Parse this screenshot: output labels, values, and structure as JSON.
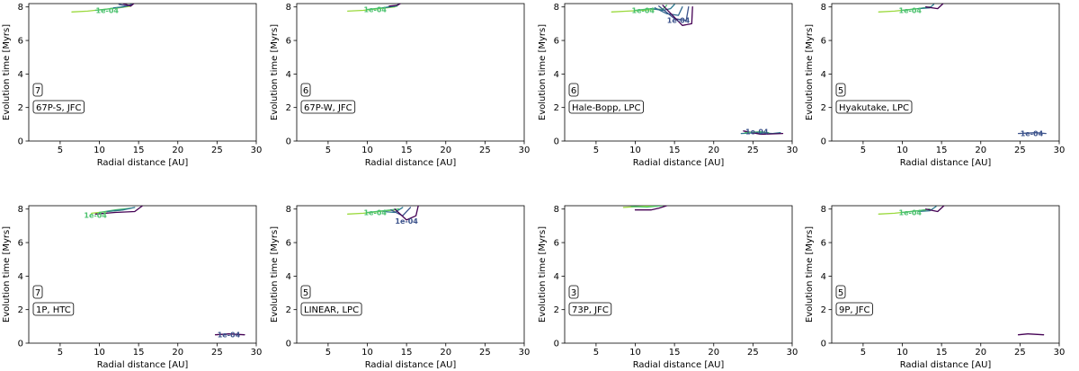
{
  "chart_data": [
    {
      "type": "contour",
      "xlabel": "Radial distance [AU]",
      "ylabel": "Evolution time [Myrs]",
      "xlim": [
        1,
        30
      ],
      "ylim": [
        0,
        8.2
      ],
      "xticks": [
        5,
        10,
        15,
        20,
        25,
        30
      ],
      "yticks": [
        0,
        2,
        4,
        6,
        8
      ],
      "number": "7",
      "label": "67P-S, JFC",
      "contour_labels": [
        "1e-04"
      ],
      "contours": [
        {
          "color": "#9ad93c",
          "points": [
            [
              6.5,
              7.7
            ],
            [
              8.5,
              7.75
            ],
            [
              10.5,
              7.85
            ],
            [
              12.5,
              7.95
            ],
            [
              14,
              8.05
            ]
          ]
        },
        {
          "color": "#4ac16d",
          "points": [
            [
              9.5,
              7.8
            ],
            [
              11.5,
              7.9
            ],
            [
              13,
              8.0
            ],
            [
              14,
              8.1
            ]
          ]
        },
        {
          "color": "#2a788e",
          "points": [
            [
              11.8,
              7.95
            ],
            [
              13,
              8.0
            ],
            [
              14,
              8.12
            ]
          ]
        },
        {
          "color": "#3b528b",
          "points": [
            [
              12.5,
              8.15
            ],
            [
              13.5,
              8.05
            ],
            [
              14.1,
              8.15
            ]
          ]
        },
        {
          "color": "#440154",
          "points": [
            [
              13,
              8.2
            ],
            [
              14,
              8.05
            ],
            [
              14.4,
              8.2
            ]
          ]
        }
      ],
      "contour_label_positions": [
        [
          11,
          7.8
        ]
      ]
    },
    {
      "type": "contour",
      "xlabel": "Radial distance [AU]",
      "ylabel": "Evolution time [Myrs]",
      "xlim": [
        1,
        30
      ],
      "ylim": [
        0,
        8.2
      ],
      "xticks": [
        5,
        10,
        15,
        20,
        25,
        30
      ],
      "yticks": [
        0,
        2,
        4,
        6,
        8
      ],
      "number": "6",
      "label": "67P-W, JFC",
      "contour_labels": [
        "1e-04"
      ],
      "contours": [
        {
          "color": "#9ad93c",
          "points": [
            [
              7.5,
              7.75
            ],
            [
              9.5,
              7.8
            ],
            [
              11.5,
              7.9
            ],
            [
              13.5,
              8.0
            ]
          ]
        },
        {
          "color": "#4ac16d",
          "points": [
            [
              10,
              7.85
            ],
            [
              12,
              7.95
            ],
            [
              13.8,
              8.05
            ]
          ]
        },
        {
          "color": "#2a788e",
          "points": [
            [
              12,
              7.95
            ],
            [
              13.5,
              8.05
            ],
            [
              14,
              8.15
            ]
          ]
        },
        {
          "color": "#440154",
          "points": [
            [
              12.8,
              8.05
            ],
            [
              13.8,
              8.1
            ],
            [
              14.2,
              8.2
            ]
          ]
        }
      ],
      "contour_label_positions": [
        [
          11,
          7.85
        ]
      ]
    },
    {
      "type": "contour",
      "xlabel": "Radial distance [AU]",
      "ylabel": "Evolution time [Myrs]",
      "xlim": [
        1,
        30
      ],
      "ylim": [
        0,
        8.2
      ],
      "xticks": [
        5,
        10,
        15,
        20,
        25,
        30
      ],
      "yticks": [
        0,
        2,
        4,
        6,
        8
      ],
      "number": "6",
      "label": "Hale-Bopp, LPC",
      "contour_labels": [
        "1e-04",
        "1e-04",
        "1e-04"
      ],
      "contours": [
        {
          "color": "#9ad93c",
          "points": [
            [
              7,
              7.7
            ],
            [
              9,
              7.75
            ],
            [
              11,
              7.8
            ],
            [
              12.5,
              7.85
            ]
          ]
        },
        {
          "color": "#4ac16d",
          "points": [
            [
              10,
              7.8
            ],
            [
              12,
              7.9
            ],
            [
              13.5,
              7.85
            ],
            [
              14,
              8.1
            ]
          ]
        },
        {
          "color": "#2a788e",
          "points": [
            [
              12,
              7.9
            ],
            [
              13.5,
              7.8
            ],
            [
              14.5,
              7.9
            ],
            [
              15,
              8.15
            ]
          ]
        },
        {
          "color": "#31688e",
          "points": [
            [
              12.5,
              7.95
            ],
            [
              14,
              7.6
            ],
            [
              15.5,
              7.5
            ],
            [
              16,
              8.0
            ]
          ]
        },
        {
          "color": "#3b528b",
          "points": [
            [
              13,
              8.05
            ],
            [
              15,
              7.3
            ],
            [
              16.5,
              7.2
            ],
            [
              16.8,
              8.0
            ]
          ]
        },
        {
          "color": "#440154",
          "points": [
            [
              13.5,
              8.1
            ],
            [
              16,
              6.9
            ],
            [
              17.2,
              7.0
            ],
            [
              17.3,
              8.0
            ]
          ]
        },
        {
          "color": "#2a788e",
          "points": [
            [
              23.5,
              0.45
            ],
            [
              25.5,
              0.5
            ],
            [
              27.5,
              0.45
            ],
            [
              28.5,
              0.5
            ]
          ]
        },
        {
          "color": "#440154",
          "points": [
            [
              23.8,
              0.6
            ],
            [
              26,
              0.4
            ],
            [
              28.8,
              0.45
            ]
          ]
        },
        {
          "color": "#4ac16d",
          "points": [
            [
              24,
              0.5
            ],
            [
              26,
              0.55
            ],
            [
              27,
              0.5
            ]
          ]
        }
      ],
      "contour_label_positions": [
        [
          11,
          7.8
        ],
        [
          15.5,
          7.2
        ],
        [
          25.5,
          0.55
        ]
      ]
    },
    {
      "type": "contour",
      "xlabel": "Radial distance [AU]",
      "ylabel": "Evolution time [Myrs]",
      "xlim": [
        1,
        30
      ],
      "ylim": [
        0,
        8.2
      ],
      "xticks": [
        5,
        10,
        15,
        20,
        25,
        30
      ],
      "yticks": [
        0,
        2,
        4,
        6,
        8
      ],
      "number": "5",
      "label": "Hyakutake, LPC",
      "contour_labels": [
        "1e-04",
        "1e-04"
      ],
      "contours": [
        {
          "color": "#9ad93c",
          "points": [
            [
              7,
              7.7
            ],
            [
              9,
              7.75
            ],
            [
              11,
              7.85
            ],
            [
              13,
              7.95
            ]
          ]
        },
        {
          "color": "#4ac16d",
          "points": [
            [
              10,
              7.8
            ],
            [
              12,
              7.9
            ],
            [
              13.5,
              8.0
            ]
          ]
        },
        {
          "color": "#2a788e",
          "points": [
            [
              12,
              7.9
            ],
            [
              13.5,
              7.95
            ],
            [
              14,
              8.15
            ]
          ]
        },
        {
          "color": "#440154",
          "points": [
            [
              13,
              8.0
            ],
            [
              14.5,
              7.9
            ],
            [
              15.2,
              8.2
            ]
          ]
        },
        {
          "color": "#3b528b",
          "points": [
            [
              24.8,
              0.45
            ],
            [
              27,
              0.5
            ],
            [
              28.3,
              0.45
            ]
          ]
        }
      ],
      "contour_label_positions": [
        [
          11,
          7.8
        ],
        [
          26.5,
          0.45
        ]
      ]
    },
    {
      "type": "contour",
      "xlabel": "Radial distance [AU]",
      "ylabel": "Evolution time [Myrs]",
      "xlim": [
        1,
        30
      ],
      "ylim": [
        0,
        8.2
      ],
      "xticks": [
        5,
        10,
        15,
        20,
        25,
        30
      ],
      "yticks": [
        0,
        2,
        4,
        6,
        8
      ],
      "number": "7",
      "label": "1P, HTC",
      "contour_labels": [
        "1e-04",
        "1e-04"
      ],
      "contours": [
        {
          "color": "#9ad93c",
          "points": [
            [
              9,
              7.75
            ],
            [
              11,
              7.85
            ],
            [
              13,
              7.95
            ]
          ]
        },
        {
          "color": "#4ac16d",
          "points": [
            [
              10,
              7.8
            ],
            [
              12,
              7.95
            ],
            [
              14,
              8.05
            ]
          ]
        },
        {
          "color": "#2a788e",
          "points": [
            [
              11,
              7.85
            ],
            [
              13,
              7.95
            ],
            [
              14.5,
              8.1
            ]
          ]
        },
        {
          "color": "#440154",
          "points": [
            [
              9.5,
              7.7
            ],
            [
              12,
              7.8
            ],
            [
              14.5,
              7.85
            ],
            [
              15.5,
              8.2
            ]
          ]
        },
        {
          "color": "#440154",
          "points": [
            [
              24.8,
              0.5
            ],
            [
              26.5,
              0.55
            ],
            [
              28.5,
              0.5
            ]
          ]
        }
      ],
      "contour_label_positions": [
        [
          9.5,
          7.65
        ],
        [
          26.5,
          0.5
        ]
      ]
    },
    {
      "type": "contour",
      "xlabel": "Radial distance [AU]",
      "ylabel": "Evolution time [Myrs]",
      "xlim": [
        1,
        30
      ],
      "ylim": [
        0,
        8.2
      ],
      "xticks": [
        5,
        10,
        15,
        20,
        25,
        30
      ],
      "yticks": [
        0,
        2,
        4,
        6,
        8
      ],
      "number": "5",
      "label": "LINEAR, LPC",
      "contour_labels": [
        "1e-04",
        "1e-04"
      ],
      "contours": [
        {
          "color": "#9ad93c",
          "points": [
            [
              7.5,
              7.7
            ],
            [
              9.5,
              7.75
            ],
            [
              11.5,
              7.85
            ],
            [
              13.5,
              7.95
            ]
          ]
        },
        {
          "color": "#4ac16d",
          "points": [
            [
              10,
              7.8
            ],
            [
              12,
              7.9
            ],
            [
              14,
              8.0
            ]
          ]
        },
        {
          "color": "#2a788e",
          "points": [
            [
              12,
              7.85
            ],
            [
              13.5,
              7.8
            ],
            [
              14.5,
              8.1
            ]
          ]
        },
        {
          "color": "#3b528b",
          "points": [
            [
              13,
              7.95
            ],
            [
              14.5,
              7.6
            ],
            [
              15.5,
              8.1
            ]
          ]
        },
        {
          "color": "#440154",
          "points": [
            [
              13.5,
              8.0
            ],
            [
              15,
              7.35
            ],
            [
              16.2,
              7.6
            ],
            [
              16.5,
              8.2
            ]
          ]
        }
      ],
      "contour_label_positions": [
        [
          11,
          7.8
        ],
        [
          15,
          7.3
        ]
      ]
    },
    {
      "type": "contour",
      "xlabel": "Radial distance [AU]",
      "ylabel": "Evolution time [Myrs]",
      "xlim": [
        1,
        30
      ],
      "ylim": [
        0,
        8.2
      ],
      "xticks": [
        5,
        10,
        15,
        20,
        25,
        30
      ],
      "yticks": [
        0,
        2,
        4,
        6,
        8
      ],
      "number": "3",
      "label": "73P, JFC",
      "contour_labels": [],
      "contours": [
        {
          "color": "#9ad93c",
          "points": [
            [
              8.5,
              8.1
            ],
            [
              10.5,
              8.15
            ],
            [
              12.5,
              8.2
            ]
          ]
        },
        {
          "color": "#4ac16d",
          "points": [
            [
              9.5,
              8.15
            ],
            [
              11.5,
              8.12
            ],
            [
              13.5,
              8.2
            ]
          ]
        },
        {
          "color": "#440154",
          "points": [
            [
              10,
              7.95
            ],
            [
              12,
              7.95
            ],
            [
              13,
              8.05
            ],
            [
              14,
              8.2
            ]
          ]
        }
      ],
      "contour_label_positions": []
    },
    {
      "type": "contour",
      "xlabel": "Radial distance [AU]",
      "ylabel": "Evolution time [Myrs]",
      "xlim": [
        1,
        30
      ],
      "ylim": [
        0,
        8.2
      ],
      "xticks": [
        5,
        10,
        15,
        20,
        25,
        30
      ],
      "yticks": [
        0,
        2,
        4,
        6,
        8
      ],
      "number": "5",
      "label": "9P, JFC",
      "contour_labels": [
        "1e-04"
      ],
      "contours": [
        {
          "color": "#9ad93c",
          "points": [
            [
              7,
              7.7
            ],
            [
              9,
              7.75
            ],
            [
              11,
              7.85
            ],
            [
              13,
              7.95
            ]
          ]
        },
        {
          "color": "#4ac16d",
          "points": [
            [
              10,
              7.8
            ],
            [
              12,
              7.9
            ],
            [
              13.5,
              8.0
            ]
          ]
        },
        {
          "color": "#2a788e",
          "points": [
            [
              12,
              7.85
            ],
            [
              13.5,
              7.9
            ],
            [
              14.3,
              8.15
            ]
          ]
        },
        {
          "color": "#440154",
          "points": [
            [
              13,
              8.0
            ],
            [
              14.5,
              7.85
            ],
            [
              15.3,
              8.2
            ]
          ]
        },
        {
          "color": "#440154",
          "points": [
            [
              24.8,
              0.5
            ],
            [
              26,
              0.55
            ],
            [
              28,
              0.5
            ]
          ]
        }
      ],
      "contour_label_positions": [
        [
          11,
          7.8
        ]
      ]
    }
  ]
}
